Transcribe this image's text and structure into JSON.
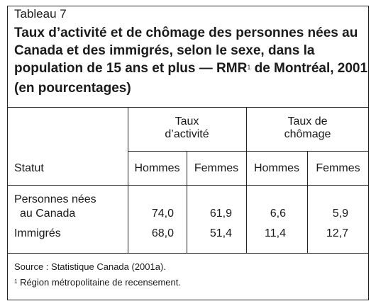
{
  "table_label": "Tableau 7",
  "title_main": "Taux d’activité et de chômage des personnes nées au Canada et des immigrés, selon le sexe, dans la population de 15 ans et plus — RMR",
  "title_sup": "1",
  "title_end": " de Montréal, 2001 (en pourcentages)",
  "header": {
    "stub": "Statut",
    "group1_line1": "Taux",
    "group1_line2": "d’activité",
    "group2_line1": "Taux de",
    "group2_line2": "chômage",
    "cols": [
      "Hommes",
      "Femmes",
      "Hommes",
      "Femmes"
    ]
  },
  "rows": [
    {
      "label_line1": "Personnes nées",
      "label_line2": "au Canada",
      "values": [
        "74,0",
        "61,9",
        "6,6",
        "5,9"
      ]
    },
    {
      "label_line1": "Immigrés",
      "values": [
        "68,0",
        "51,4",
        "11,4",
        "12,7"
      ]
    }
  ],
  "footnotes": {
    "source": "Source : Statistique Canada (2001a).",
    "note_marker": "1",
    "note_text": " Région métropolitaine de recensement."
  }
}
